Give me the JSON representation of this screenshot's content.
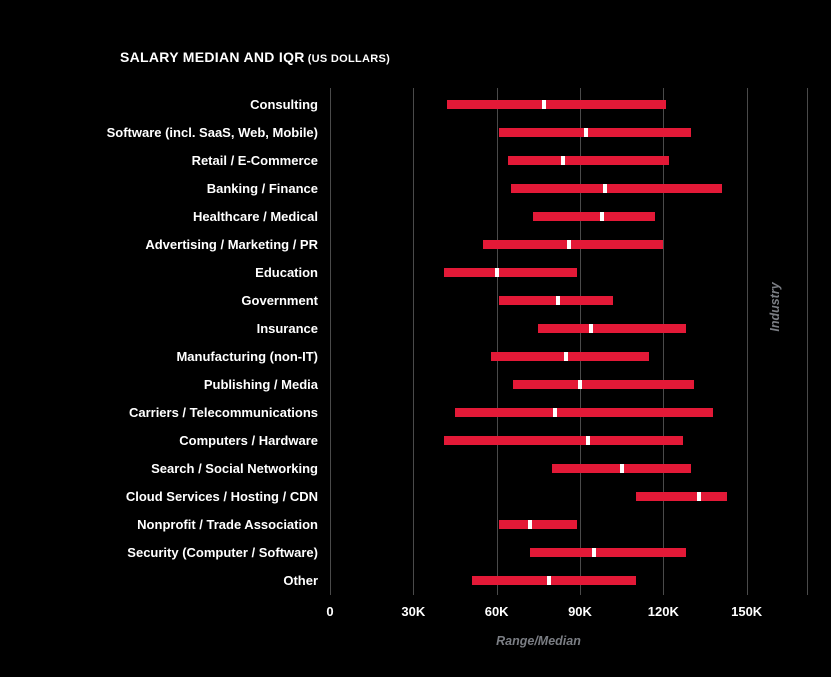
{
  "title": {
    "main": "SALARY MEDIAN AND IQR",
    "sub": "(US DOLLARS)"
  },
  "colors": {
    "background": "#000000",
    "bar": "#e31937",
    "median_marker": "#ffffff",
    "gridline": "#4a4a4a",
    "tick_label": "#ffffff",
    "category_label": "#ffffff",
    "axis_title": "#7b7e84"
  },
  "chart_data": {
    "type": "bar",
    "subtype": "horizontal range (IQR) bars with white median markers",
    "title": "SALARY MEDIAN AND IQR (US DOLLARS)",
    "xlabel": "Range/Median",
    "ylabel": "Industry",
    "grid": true,
    "xlim": [
      0,
      171500
    ],
    "x_ticks": [
      {
        "value": 0,
        "label": "0"
      },
      {
        "value": 30000,
        "label": "30K"
      },
      {
        "value": 60000,
        "label": "60K"
      },
      {
        "value": 90000,
        "label": "90K"
      },
      {
        "value": 120000,
        "label": "120K"
      },
      {
        "value": 150000,
        "label": "150K"
      }
    ],
    "rows": [
      {
        "category": "Consulting",
        "low": 42000,
        "median": 77000,
        "high": 121000
      },
      {
        "category": "Software (incl. SaaS, Web, Mobile)",
        "low": 61000,
        "median": 92000,
        "high": 130000
      },
      {
        "category": "Retail / E-Commerce",
        "low": 64000,
        "median": 84000,
        "high": 122000
      },
      {
        "category": "Banking / Finance",
        "low": 65000,
        "median": 99000,
        "high": 141000
      },
      {
        "category": "Healthcare / Medical",
        "low": 73000,
        "median": 98000,
        "high": 117000
      },
      {
        "category": "Advertising / Marketing / PR",
        "low": 55000,
        "median": 86000,
        "high": 120000
      },
      {
        "category": "Education",
        "low": 41000,
        "median": 60000,
        "high": 89000
      },
      {
        "category": "Government",
        "low": 61000,
        "median": 82000,
        "high": 102000
      },
      {
        "category": "Insurance",
        "low": 75000,
        "median": 94000,
        "high": 128000
      },
      {
        "category": "Manufacturing (non-IT)",
        "low": 58000,
        "median": 85000,
        "high": 115000
      },
      {
        "category": "Publishing / Media",
        "low": 66000,
        "median": 90000,
        "high": 131000
      },
      {
        "category": "Carriers / Telecommunications",
        "low": 45000,
        "median": 81000,
        "high": 138000
      },
      {
        "category": "Computers / Hardware",
        "low": 41000,
        "median": 93000,
        "high": 127000
      },
      {
        "category": "Search / Social Networking",
        "low": 80000,
        "median": 105000,
        "high": 130000
      },
      {
        "category": "Cloud Services / Hosting / CDN",
        "low": 110000,
        "median": 133000,
        "high": 143000
      },
      {
        "category": "Nonprofit / Trade Association",
        "low": 61000,
        "median": 72000,
        "high": 89000
      },
      {
        "category": "Security (Computer / Software)",
        "low": 72000,
        "median": 95000,
        "high": 128000
      },
      {
        "category": "Other",
        "low": 51000,
        "median": 79000,
        "high": 110000
      }
    ]
  }
}
